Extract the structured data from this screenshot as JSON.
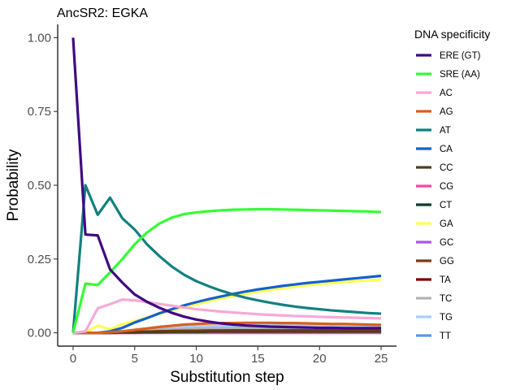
{
  "chart_data": {
    "type": "line",
    "title": "AncSR2: EGKA",
    "xlabel": "Substitution step",
    "ylabel": "Probability",
    "xlim": [
      -1.25,
      26.25
    ],
    "ylim": [
      -0.045,
      1.045
    ],
    "x_ticks": [
      0,
      5,
      10,
      15,
      20,
      25
    ],
    "x_tick_labels": [
      "0",
      "5",
      "10",
      "15",
      "20",
      "25"
    ],
    "y_ticks": [
      0,
      0.25,
      0.5,
      0.75,
      1.0
    ],
    "y_tick_labels": [
      "0.00",
      "0.25",
      "0.50",
      "0.75",
      "1.00"
    ],
    "grid": false,
    "legend": {
      "title": "DNA specificity",
      "position": "right"
    },
    "x": [
      0,
      1,
      2,
      3,
      4,
      5,
      6,
      7,
      8,
      9,
      10,
      11,
      12,
      13,
      14,
      15,
      16,
      17,
      18,
      19,
      20,
      21,
      22,
      23,
      24,
      25
    ],
    "series": [
      {
        "name": "ERE (GT)",
        "color": "#3f0a82",
        "values": [
          1.0,
          0.333,
          0.33,
          0.215,
          0.17,
          0.13,
          0.105,
          0.085,
          0.068,
          0.055,
          0.045,
          0.038,
          0.032,
          0.028,
          0.025,
          0.023,
          0.021,
          0.02,
          0.019,
          0.018,
          0.017,
          0.017,
          0.016,
          0.016,
          0.016,
          0.016
        ]
      },
      {
        "name": "SRE (AA)",
        "color": "#33ff33",
        "values": [
          0,
          0.167,
          0.162,
          0.205,
          0.25,
          0.3,
          0.34,
          0.37,
          0.39,
          0.402,
          0.408,
          0.412,
          0.415,
          0.417,
          0.418,
          0.419,
          0.419,
          0.418,
          0.417,
          0.416,
          0.415,
          0.414,
          0.413,
          0.412,
          0.411,
          0.409
        ]
      },
      {
        "name": "AC",
        "color": "#f7a8d8",
        "values": [
          0,
          0.005,
          0.083,
          0.097,
          0.113,
          0.11,
          0.104,
          0.098,
          0.092,
          0.086,
          0.08,
          0.076,
          0.072,
          0.069,
          0.066,
          0.063,
          0.061,
          0.059,
          0.057,
          0.056,
          0.054,
          0.053,
          0.052,
          0.051,
          0.05,
          0.049
        ]
      },
      {
        "name": "AG",
        "color": "#d9601a",
        "values": [
          0,
          0,
          0,
          0.002,
          0.005,
          0.01,
          0.015,
          0.02,
          0.024,
          0.028,
          0.03,
          0.032,
          0.033,
          0.033,
          0.034,
          0.034,
          0.034,
          0.033,
          0.033,
          0.032,
          0.031,
          0.03,
          0.03,
          0.029,
          0.028,
          0.027
        ]
      },
      {
        "name": "AT",
        "color": "#128080",
        "values": [
          0,
          0.5,
          0.4,
          0.458,
          0.388,
          0.35,
          0.3,
          0.26,
          0.225,
          0.197,
          0.175,
          0.158,
          0.143,
          0.13,
          0.119,
          0.11,
          0.102,
          0.095,
          0.089,
          0.084,
          0.08,
          0.076,
          0.073,
          0.07,
          0.067,
          0.065
        ]
      },
      {
        "name": "CA",
        "color": "#1560cc",
        "values": [
          0,
          0,
          0,
          0.005,
          0.017,
          0.035,
          0.05,
          0.066,
          0.08,
          0.093,
          0.104,
          0.114,
          0.123,
          0.132,
          0.14,
          0.147,
          0.153,
          0.159,
          0.164,
          0.169,
          0.173,
          0.177,
          0.181,
          0.185,
          0.189,
          0.193
        ]
      },
      {
        "name": "CC",
        "color": "#4a4020",
        "values": [
          0,
          0,
          0,
          0,
          0.001,
          0.001,
          0.002,
          0.002,
          0.003,
          0.003,
          0.003,
          0.004,
          0.004,
          0.004,
          0.004,
          0.004,
          0.004,
          0.004,
          0.004,
          0.004,
          0.004,
          0.004,
          0.004,
          0.004,
          0.004,
          0.004
        ]
      },
      {
        "name": "CG",
        "color": "#ff44a4",
        "values": [
          0,
          0,
          0,
          0,
          0,
          0,
          0.001,
          0.001,
          0.001,
          0.001,
          0.001,
          0.001,
          0.001,
          0.001,
          0.001,
          0.001,
          0.001,
          0.001,
          0.001,
          0.001,
          0.001,
          0.001,
          0.001,
          0.001,
          0.001,
          0.001
        ]
      },
      {
        "name": "CT",
        "color": "#0a3a2e",
        "values": [
          0,
          0,
          0,
          0,
          0.001,
          0.001,
          0.002,
          0.002,
          0.002,
          0.003,
          0.003,
          0.003,
          0.003,
          0.003,
          0.003,
          0.003,
          0.003,
          0.003,
          0.003,
          0.003,
          0.003,
          0.003,
          0.003,
          0.003,
          0.003,
          0.003
        ]
      },
      {
        "name": "GA",
        "color": "#ffff55",
        "values": [
          0,
          0,
          0.025,
          0.012,
          0.03,
          0.04,
          0.052,
          0.064,
          0.076,
          0.087,
          0.097,
          0.107,
          0.116,
          0.124,
          0.132,
          0.139,
          0.145,
          0.151,
          0.156,
          0.161,
          0.165,
          0.169,
          0.172,
          0.175,
          0.178,
          0.18
        ]
      },
      {
        "name": "GC",
        "color": "#aa55ee",
        "values": [
          0,
          0,
          0,
          0,
          0,
          0,
          0,
          0,
          0,
          0,
          0,
          0,
          0,
          0,
          0,
          0,
          0,
          0,
          0,
          0,
          0,
          0,
          0,
          0,
          0,
          0
        ]
      },
      {
        "name": "GG",
        "color": "#7a3a12",
        "values": [
          0,
          0,
          0,
          0.001,
          0.002,
          0.003,
          0.004,
          0.005,
          0.006,
          0.007,
          0.007,
          0.008,
          0.008,
          0.008,
          0.008,
          0.008,
          0.008,
          0.008,
          0.008,
          0.008,
          0.008,
          0.008,
          0.008,
          0.008,
          0.008,
          0.008
        ]
      },
      {
        "name": "TA",
        "color": "#7a0000",
        "values": [
          0,
          0,
          0,
          0.001,
          0.002,
          0.003,
          0.004,
          0.005,
          0.006,
          0.006,
          0.007,
          0.007,
          0.007,
          0.008,
          0.008,
          0.008,
          0.008,
          0.008,
          0.008,
          0.008,
          0.008,
          0.008,
          0.008,
          0.008,
          0.008,
          0.008
        ]
      },
      {
        "name": "TC",
        "color": "#b3b3b3",
        "values": [
          0,
          0,
          0,
          0.002,
          0.004,
          0.006,
          0.008,
          0.01,
          0.012,
          0.013,
          0.014,
          0.015,
          0.016,
          0.016,
          0.017,
          0.017,
          0.017,
          0.017,
          0.017,
          0.017,
          0.017,
          0.017,
          0.017,
          0.017,
          0.017,
          0.017
        ]
      },
      {
        "name": "TG",
        "color": "#aaccff",
        "values": [
          0,
          0,
          0,
          0.003,
          0.006,
          0.009,
          0.012,
          0.015,
          0.017,
          0.019,
          0.021,
          0.022,
          0.023,
          0.024,
          0.024,
          0.025,
          0.025,
          0.025,
          0.025,
          0.025,
          0.025,
          0.025,
          0.025,
          0.025,
          0.025,
          0.025
        ]
      },
      {
        "name": "TT",
        "color": "#5599e8",
        "values": [
          0,
          0,
          0,
          0.002,
          0.004,
          0.006,
          0.008,
          0.01,
          0.012,
          0.013,
          0.015,
          0.016,
          0.017,
          0.018,
          0.019,
          0.02,
          0.02,
          0.021,
          0.021,
          0.021,
          0.022,
          0.022,
          0.022,
          0.022,
          0.022,
          0.022
        ]
      }
    ]
  }
}
